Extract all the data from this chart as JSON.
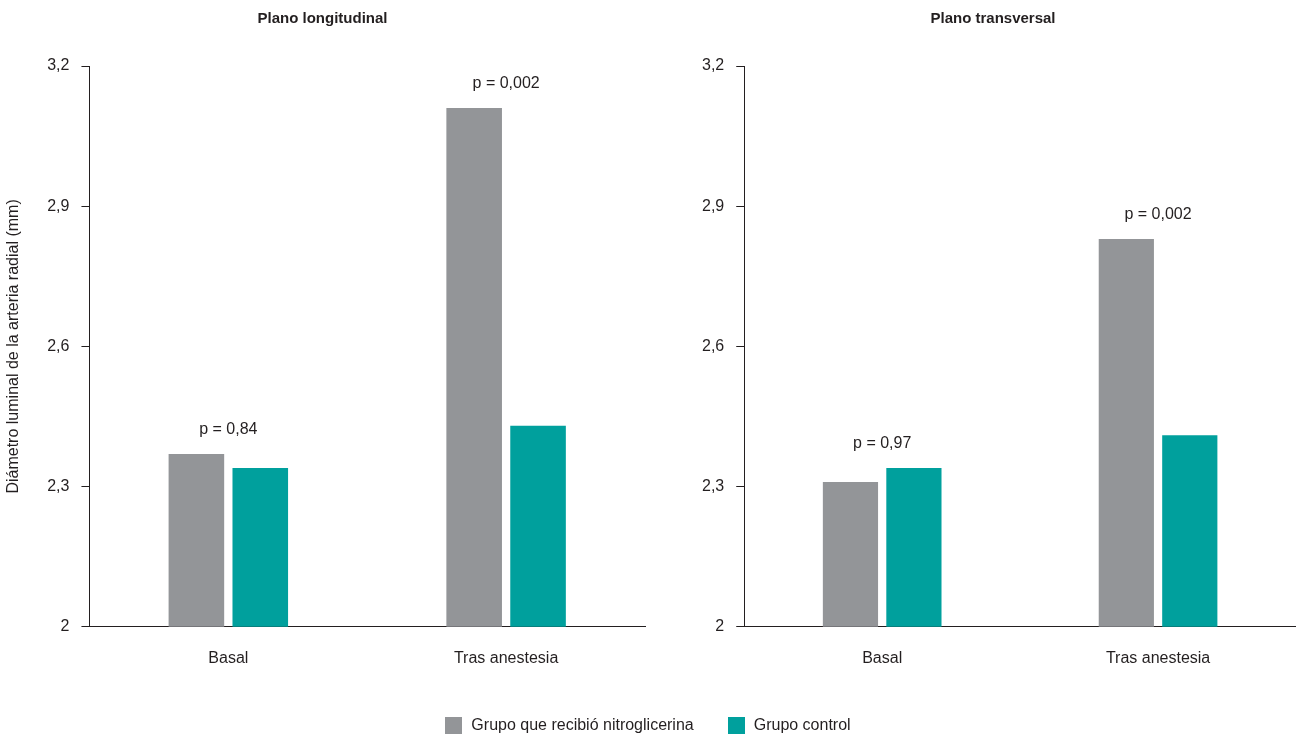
{
  "chart_data": [
    {
      "type": "bar",
      "title": "Plano longitudinal",
      "ylabel": "Diámetro luminal de la arteria radial (mm)",
      "categories": [
        "Basal",
        "Tras anestesia"
      ],
      "series": [
        {
          "name": "Grupo que recibió nitroglicerina",
          "color": "#939598",
          "values": [
            2.37,
            3.11
          ]
        },
        {
          "name": "Grupo control",
          "color": "#00a09d",
          "values": [
            2.34,
            2.43
          ]
        }
      ],
      "ylim": [
        2,
        3.2
      ],
      "yticks": [
        2,
        {
          "value": 2.3,
          "label": "2,3"
        },
        {
          "value": 2.6,
          "label": "2,6"
        },
        {
          "value": 2.9,
          "label": "2,9"
        },
        {
          "value": 3.2,
          "label": "3,2"
        }
      ],
      "grid": false,
      "legend": "bottom",
      "annotations": [
        "p = 0,84",
        "p = 0,002"
      ]
    },
    {
      "type": "bar",
      "title": "Plano transversal",
      "categories": [
        "Basal",
        "Tras anestesia"
      ],
      "series": [
        {
          "color": "#939598",
          "values": [
            2.31,
            2.83
          ]
        },
        {
          "color": "#00a09d",
          "values": [
            2.34,
            2.41
          ]
        }
      ],
      "ylim": [
        2,
        3.2
      ],
      "yticks": [
        2,
        {
          "value": 2.3,
          "label": "2,3"
        },
        {
          "value": 2.6,
          "label": "2,6"
        },
        {
          "value": 2.9,
          "label": "2,9"
        },
        {
          "value": 3.2,
          "label": "3,2"
        }
      ],
      "grid": false,
      "annotations": [
        "p = 0,97",
        "p = 0,002"
      ]
    }
  ]
}
